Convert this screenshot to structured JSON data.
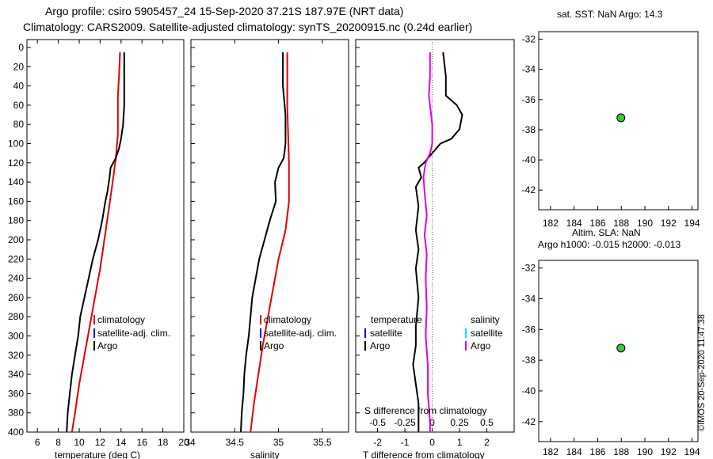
{
  "header": {
    "title_line1": "Argo profile: csiro 5905457_24 15-Sep-2020 37.21S 187.97E (NRT data)",
    "title_line2": "Climatology: CARS2009. Satellite-adjusted climatology: synTS_20200915.nc (0.24d earlier)",
    "sst_label": "sat. SST: NaN Argo: 14.3",
    "sla_label1": "Altim. SLA: NaN",
    "sla_label2": "Argo h1000: -0.015 h2000: -0.013",
    "timestamp": "©IMOS 20-Sep-2020 11:47:38"
  },
  "colors": {
    "argo": "#000000",
    "climatology": "#e00000",
    "satellite": "#0000ff",
    "salinity_satellite": "#00e0ff",
    "salinity_diff": "#e000e0",
    "marker": "#33cc33"
  },
  "chart_data": [
    {
      "id": "temperature",
      "type": "line",
      "xlabel": "temperature (deg C)",
      "ylabel": "",
      "xlim": [
        5,
        20
      ],
      "ylim": [
        400,
        0
      ],
      "xticks": [
        6,
        8,
        10,
        12,
        14,
        16,
        18,
        20
      ],
      "yticks": [
        0,
        20,
        40,
        60,
        80,
        100,
        120,
        140,
        160,
        180,
        200,
        220,
        240,
        260,
        280,
        300,
        320,
        340,
        360,
        380,
        400
      ],
      "legend": [
        "climatology",
        "satellite-adj. clim.",
        "Argo"
      ],
      "series": [
        {
          "name": "climatology",
          "color": "#e00000",
          "points": [
            [
              13.9,
              5
            ],
            [
              13.8,
              30
            ],
            [
              13.7,
              50
            ],
            [
              13.7,
              90
            ],
            [
              13.5,
              115
            ],
            [
              13.2,
              140
            ],
            [
              12.8,
              170
            ],
            [
              12.4,
              200
            ],
            [
              12.0,
              230
            ],
            [
              11.5,
              260
            ],
            [
              11.0,
              290
            ],
            [
              10.5,
              320
            ],
            [
              10.0,
              350
            ],
            [
              9.6,
              380
            ],
            [
              9.3,
              400
            ]
          ]
        },
        {
          "name": "Argo",
          "color": "#000000",
          "points": [
            [
              14.3,
              5
            ],
            [
              14.3,
              30
            ],
            [
              14.3,
              60
            ],
            [
              14.2,
              80
            ],
            [
              14.0,
              95
            ],
            [
              13.8,
              105
            ],
            [
              13.5,
              115
            ],
            [
              13.0,
              125
            ],
            [
              12.9,
              135
            ],
            [
              12.7,
              150
            ],
            [
              12.5,
              160
            ],
            [
              12.2,
              180
            ],
            [
              11.8,
              200
            ],
            [
              11.3,
              220
            ],
            [
              10.9,
              240
            ],
            [
              10.5,
              260
            ],
            [
              10.1,
              280
            ],
            [
              9.9,
              300
            ],
            [
              9.6,
              320
            ],
            [
              9.3,
              340
            ],
            [
              9.1,
              360
            ],
            [
              8.9,
              380
            ],
            [
              8.8,
              400
            ]
          ]
        }
      ]
    },
    {
      "id": "salinity",
      "type": "line",
      "xlabel": "salinity",
      "ylabel": "",
      "xlim": [
        34.0,
        35.8
      ],
      "ylim": [
        400,
        0
      ],
      "xticks": [
        34.5,
        35,
        35.5
      ],
      "xticklabels": [
        "34.5",
        "35",
        "35.5"
      ],
      "legend": [
        "climatology",
        "satellite-adj. clim.",
        "Argo"
      ],
      "series": [
        {
          "name": "climatology",
          "color": "#e00000",
          "points": [
            [
              35.1,
              5
            ],
            [
              35.1,
              60
            ],
            [
              35.12,
              120
            ],
            [
              35.12,
              160
            ],
            [
              35.08,
              190
            ],
            [
              35.0,
              220
            ],
            [
              34.94,
              250
            ],
            [
              34.88,
              280
            ],
            [
              34.82,
              310
            ],
            [
              34.77,
              340
            ],
            [
              34.72,
              370
            ],
            [
              34.68,
              400
            ]
          ]
        },
        {
          "name": "Argo",
          "color": "#000000",
          "points": [
            [
              35.05,
              5
            ],
            [
              35.05,
              40
            ],
            [
              35.08,
              70
            ],
            [
              35.08,
              100
            ],
            [
              35.06,
              115
            ],
            [
              35.0,
              125
            ],
            [
              34.96,
              140
            ],
            [
              34.97,
              160
            ],
            [
              34.9,
              180
            ],
            [
              34.84,
              200
            ],
            [
              34.78,
              220
            ],
            [
              34.74,
              240
            ],
            [
              34.7,
              260
            ],
            [
              34.68,
              280
            ],
            [
              34.66,
              300
            ],
            [
              34.63,
              320
            ],
            [
              34.61,
              340
            ],
            [
              34.6,
              360
            ],
            [
              34.58,
              380
            ],
            [
              34.57,
              400
            ]
          ]
        }
      ]
    },
    {
      "id": "difference",
      "type": "line",
      "xlabel": "T difference from climatology",
      "xlabel_top": "S difference from climatology",
      "xlim": [
        -2.8,
        3.0
      ],
      "ylim": [
        400,
        0
      ],
      "xticks": [
        -2,
        -1,
        0,
        1,
        2
      ],
      "xticklabels": [
        "-2",
        "-1",
        "0",
        "1",
        "2"
      ],
      "s_xlim": [
        -0.7,
        0.75
      ],
      "s_xticks": [
        -0.5,
        -0.25,
        0,
        0.25,
        0.5
      ],
      "s_xticklabels": [
        "-0.5",
        "-0.25",
        "0",
        "0.25",
        "0.5"
      ],
      "legend_temperature_title": "temperature",
      "legend_salinity_title": "salinity",
      "legend": [
        "satellite",
        "Argo"
      ],
      "series": [
        {
          "name": "T difference (Argo)",
          "color": "#000000",
          "axis": "T",
          "points": [
            [
              0.4,
              5
            ],
            [
              0.5,
              30
            ],
            [
              0.5,
              50
            ],
            [
              0.9,
              60
            ],
            [
              1.1,
              70
            ],
            [
              1.0,
              85
            ],
            [
              0.7,
              95
            ],
            [
              0.3,
              100
            ],
            [
              0.0,
              110
            ],
            [
              -0.3,
              120
            ],
            [
              -0.5,
              125
            ],
            [
              -0.4,
              135
            ],
            [
              -0.6,
              145
            ],
            [
              -0.5,
              165
            ],
            [
              -0.6,
              190
            ],
            [
              -0.5,
              210
            ],
            [
              -0.6,
              230
            ],
            [
              -0.5,
              260
            ],
            [
              -0.6,
              290
            ],
            [
              -0.6,
              310
            ],
            [
              -0.7,
              330
            ],
            [
              -0.6,
              350
            ],
            [
              -0.5,
              370
            ],
            [
              -0.5,
              400
            ]
          ]
        },
        {
          "name": "S difference (Argo)",
          "color": "#e000e0",
          "axis": "S",
          "points": [
            [
              -0.02,
              5
            ],
            [
              -0.02,
              30
            ],
            [
              -0.03,
              50
            ],
            [
              0.0,
              80
            ],
            [
              0.0,
              100
            ],
            [
              -0.02,
              110
            ],
            [
              -0.06,
              120
            ],
            [
              -0.08,
              135
            ],
            [
              -0.07,
              150
            ],
            [
              -0.05,
              175
            ],
            [
              -0.07,
              195
            ],
            [
              -0.05,
              215
            ],
            [
              -0.06,
              240
            ],
            [
              -0.05,
              270
            ],
            [
              -0.06,
              300
            ],
            [
              -0.04,
              330
            ],
            [
              -0.04,
              360
            ],
            [
              -0.02,
              390
            ],
            [
              -0.02,
              400
            ]
          ]
        }
      ]
    },
    {
      "id": "sst_map",
      "type": "scatter",
      "xlim": [
        181,
        194.5
      ],
      "ylim": [
        -43.3,
        -31.5
      ],
      "xticks": [
        182,
        184,
        186,
        188,
        190,
        192,
        194
      ],
      "yticks": [
        -32,
        -34,
        -36,
        -38,
        -40,
        -42
      ],
      "points": [
        [
          187.97,
          -37.21
        ]
      ]
    },
    {
      "id": "sla_map",
      "type": "scatter",
      "xlim": [
        181,
        194.5
      ],
      "ylim": [
        -43.3,
        -31.5
      ],
      "xticks": [
        182,
        184,
        186,
        188,
        190,
        192,
        194
      ],
      "yticks": [
        -32,
        -34,
        -36,
        -38,
        -40,
        -42
      ],
      "points": [
        [
          187.97,
          -37.21
        ]
      ]
    }
  ]
}
